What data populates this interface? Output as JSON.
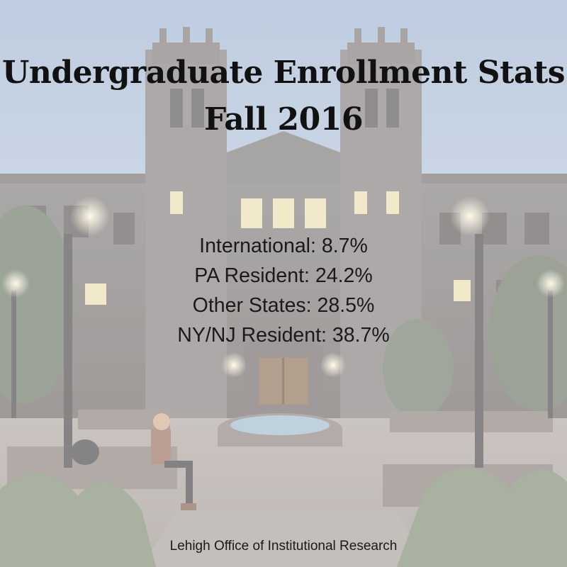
{
  "title": {
    "line1": "Undergraduate Enrollment Stats",
    "line2": "Fall 2016"
  },
  "stats": [
    "International: 8.7%",
    "PA Resident: 24.2%",
    "Other States: 28.5%",
    "NY/NJ Resident: 38.7%"
  ],
  "footer": "Lehigh Office of Institutional Research"
}
